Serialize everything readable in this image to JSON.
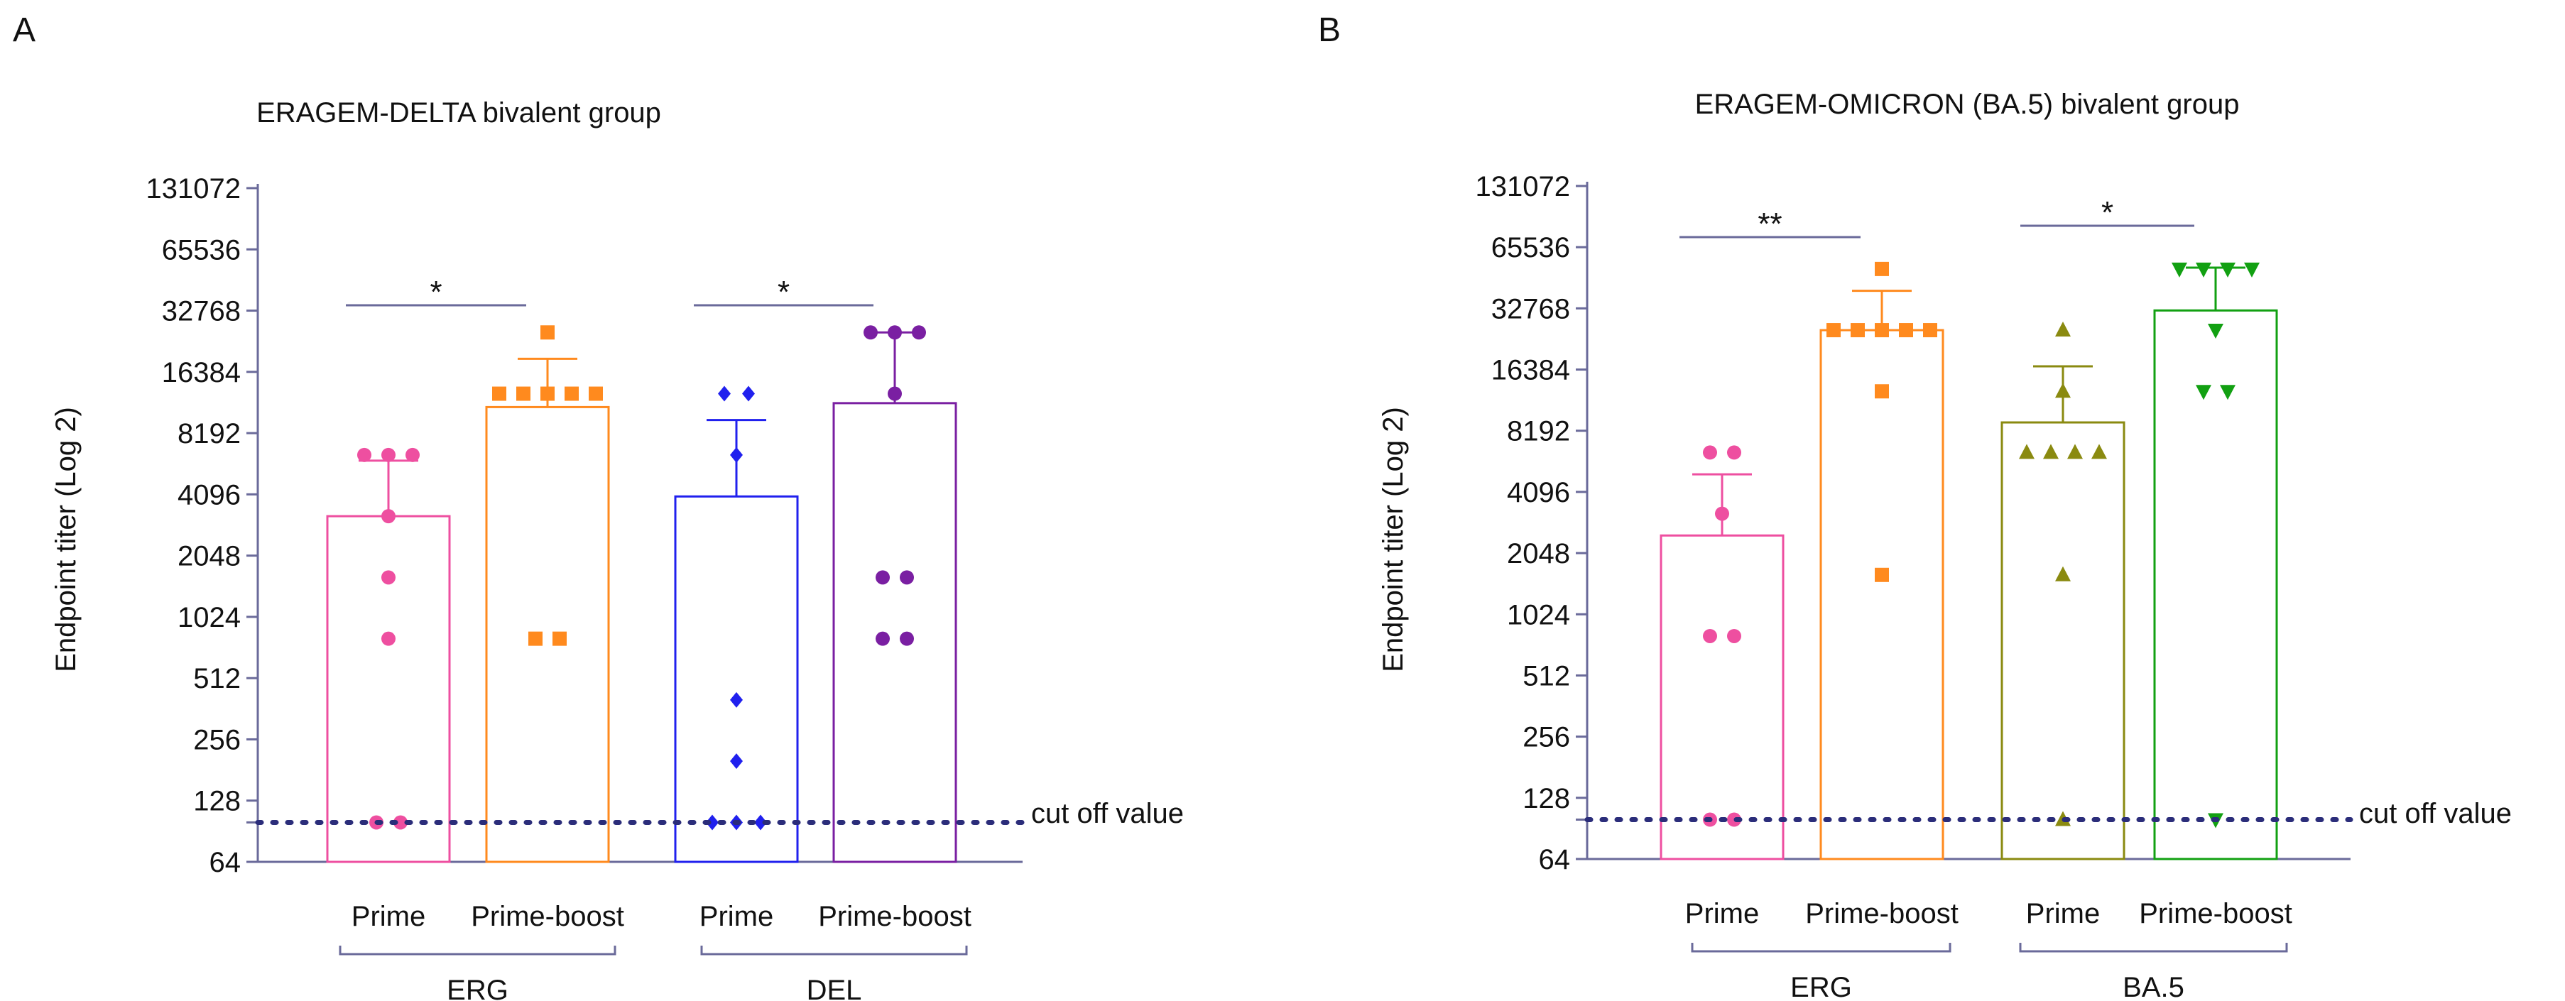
{
  "chart_data": [
    {
      "panel_letter": "A",
      "type": "bar",
      "title": "ERAGEM-DELTA bivalent group",
      "ylabel": "Endpoint titer (Log 2)",
      "y_scale": "log2",
      "ylim": [
        64,
        131072
      ],
      "yticks": [
        "64",
        "128",
        "256",
        "512",
        "1024",
        "2048",
        "4096",
        "8192",
        "16384",
        "32768",
        "65536",
        "131072"
      ],
      "yticks_values": [
        64,
        128,
        256,
        512,
        1024,
        2048,
        4096,
        8192,
        16384,
        32768,
        65536,
        131072
      ],
      "cutoff": {
        "value": 100,
        "label": "cut off value"
      },
      "groups": [
        {
          "label": "ERG",
          "bars": [
            0,
            1
          ]
        },
        {
          "label": "DEL",
          "bars": [
            2,
            3
          ]
        }
      ],
      "bars": [
        {
          "label": "Prime",
          "value": 3200,
          "error_upper": 6000,
          "color": "#ee4fa0",
          "marker": "circle",
          "points": [
            6400,
            6400,
            6400,
            3200,
            1600,
            800,
            100,
            100
          ]
        },
        {
          "label": "Prime-boost",
          "value": 11000,
          "error_upper": 19000,
          "color": "#ff8a1e",
          "marker": "square",
          "points": [
            25600,
            12800,
            12800,
            12800,
            12800,
            12800,
            800,
            800
          ]
        },
        {
          "label": "Prime",
          "value": 4000,
          "error_upper": 9500,
          "color": "#2020ee",
          "marker": "diamond",
          "points": [
            12800,
            12800,
            6400,
            400,
            200,
            100,
            100,
            100
          ]
        },
        {
          "label": "Prime-boost",
          "value": 11500,
          "error_upper": 25600,
          "color": "#7a1fa2",
          "marker": "circle",
          "points": [
            25600,
            25600,
            25600,
            12800,
            1600,
            1600,
            800,
            800
          ]
        }
      ],
      "significance": [
        {
          "from_bar": 0,
          "to_bar": 1,
          "label": "*"
        },
        {
          "from_bar": 2,
          "to_bar": 3,
          "label": "*"
        }
      ]
    },
    {
      "panel_letter": "B",
      "type": "bar",
      "title": "ERAGEM-OMICRON (BA.5) bivalent group",
      "ylabel": "Endpoint titer (Log 2)",
      "y_scale": "log2",
      "ylim": [
        64,
        131072
      ],
      "yticks": [
        "64",
        "128",
        "256",
        "512",
        "1024",
        "2048",
        "4096",
        "8192",
        "16384",
        "32768",
        "65536",
        "131072"
      ],
      "yticks_values": [
        64,
        128,
        256,
        512,
        1024,
        2048,
        4096,
        8192,
        16384,
        32768,
        65536,
        131072
      ],
      "cutoff": {
        "value": 100,
        "label": "cut off value"
      },
      "groups": [
        {
          "label": "ERG",
          "bars": [
            0,
            1
          ]
        },
        {
          "label": "BA.5",
          "bars": [
            2,
            3
          ]
        }
      ],
      "bars": [
        {
          "label": "Prime",
          "value": 2500,
          "error_upper": 5000,
          "color": "#ee4fa0",
          "marker": "circle",
          "points": [
            6400,
            6400,
            3200,
            800,
            800,
            100,
            100
          ]
        },
        {
          "label": "Prime-boost",
          "value": 25600,
          "error_upper": 40000,
          "color": "#ff8a1e",
          "marker": "square",
          "points": [
            51200,
            25600,
            25600,
            25600,
            25600,
            25600,
            12800,
            1600
          ]
        },
        {
          "label": "Prime",
          "value": 9000,
          "error_upper": 17000,
          "color": "#8a8a10",
          "marker": "triangle",
          "points": [
            25600,
            12800,
            6400,
            6400,
            6400,
            6400,
            1600,
            100
          ]
        },
        {
          "label": "Prime-boost",
          "value": 32000,
          "error_upper": 52000,
          "color": "#12a012",
          "marker": "triangle-down",
          "points": [
            51200,
            51200,
            51200,
            51200,
            25600,
            12800,
            12800,
            100
          ]
        }
      ],
      "significance": [
        {
          "from_bar": 0,
          "to_bar": 1,
          "label": "**"
        },
        {
          "from_bar": 2,
          "to_bar": 3,
          "label": "*"
        }
      ]
    }
  ]
}
